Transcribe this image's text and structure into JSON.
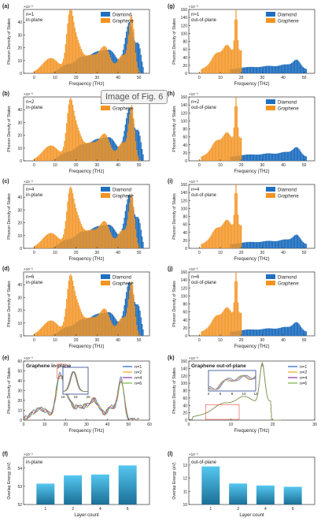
{
  "overlay_label": "Image of Fig. 6",
  "colors": {
    "diamond": "#1f6fbf",
    "graphene": "#f39422",
    "n1": "#1f5fd6",
    "n2": "#f5a623",
    "n4": "#8b2fb5",
    "n6": "#7cb342",
    "bar_top": "#55c7f0",
    "bar_bottom": "#1b6f96",
    "inset_box": "#2b3f8f",
    "red_box": "#e74c3c"
  },
  "chart_data": [
    {
      "id": "a",
      "type": "bar",
      "panel_label": "(a)",
      "n_label": "n=1",
      "plane_label": "in-plane",
      "scale_label": "×10⁻³",
      "ylabel": "Phonon Density of States",
      "xlabel": "Frequency (THz)",
      "xlim": [
        -5,
        55
      ],
      "xticks": [
        0,
        10,
        20,
        30,
        40,
        50
      ],
      "ylim": [
        0,
        50
      ],
      "yticks": [
        0,
        10,
        20,
        30,
        40
      ],
      "legend": [
        "Diamond",
        "Graphene"
      ],
      "diamond_peak": 40,
      "graphene_peak": 46
    },
    {
      "id": "b",
      "type": "bar",
      "panel_label": "(b)",
      "n_label": "n=2",
      "plane_label": "in-plane",
      "scale_label": "×10⁻³",
      "ylabel": "Phonon Density of States",
      "xlabel": "Frequency (THz)",
      "xlim": [
        -5,
        55
      ],
      "xticks": [
        0,
        10,
        20,
        30,
        40,
        50
      ],
      "ylim": [
        0,
        50
      ],
      "yticks": [
        0,
        10,
        20,
        30,
        40
      ],
      "legend": [
        "Diamond",
        "Graphene"
      ],
      "diamond_peak": 41,
      "graphene_peak": 44
    },
    {
      "id": "c",
      "type": "bar",
      "panel_label": "(c)",
      "n_label": "n=4",
      "plane_label": "in-plane",
      "scale_label": "×10⁻³",
      "ylabel": "Phonon Density of States",
      "xlabel": "Frequency (THz)",
      "xlim": [
        -5,
        55
      ],
      "xticks": [
        0,
        10,
        20,
        30,
        40,
        50
      ],
      "ylim": [
        0,
        50
      ],
      "yticks": [
        0,
        10,
        20,
        30,
        40
      ],
      "legend": [
        "Diamond",
        "Graphene"
      ],
      "diamond_peak": 42,
      "graphene_peak": 43
    },
    {
      "id": "d",
      "type": "bar",
      "panel_label": "(d)",
      "n_label": "n=6",
      "plane_label": "in-plane",
      "scale_label": "×10⁻³",
      "ylabel": "Phonon Density of States",
      "xlabel": "Frequency (THz)",
      "xlim": [
        -5,
        55
      ],
      "xticks": [
        0,
        10,
        20,
        30,
        40,
        50
      ],
      "ylim": [
        0,
        50
      ],
      "yticks": [
        0,
        10,
        20,
        30,
        40
      ],
      "legend": [
        "Diamond",
        "Graphene"
      ],
      "diamond_peak": 42,
      "graphene_peak": 43
    },
    {
      "id": "e",
      "type": "line",
      "panel_label": "(e)",
      "title": "Graphene in-plane",
      "scale_label": "×10⁻³",
      "ylabel": "Phonon Density of States",
      "xlabel": "Frequency (THz)",
      "xlim": [
        0,
        60
      ],
      "xticks": [
        0,
        10,
        20,
        30,
        40,
        50,
        60
      ],
      "ylim": [
        0,
        60
      ],
      "yticks": [
        0,
        10,
        20,
        30,
        40,
        50,
        60
      ],
      "legend": [
        "n=1",
        "n=2",
        "n=4",
        "n=6"
      ],
      "inset": {
        "xlim": [
          16,
          20
        ],
        "xticks": [
          16,
          18,
          20
        ]
      }
    },
    {
      "id": "f",
      "type": "bar",
      "panel_label": "(f)",
      "label": "in-plane",
      "scale_label": "×10⁻³",
      "ylabel": "Overlap Energy (eV)",
      "xlabel": "Layer count",
      "categories": [
        "1",
        "2",
        "4",
        "6"
      ],
      "values": [
        53.15,
        53.6,
        53.65,
        54.15
      ],
      "ylim": [
        52,
        54.6
      ],
      "yticks": [
        52,
        53,
        54
      ]
    },
    {
      "id": "g",
      "type": "bar",
      "panel_label": "(g)",
      "n_label": "n=1",
      "plane_label": "out-of-plane",
      "scale_label": "×10⁻³",
      "ylabel": "Phonon Density of States",
      "xlabel": "Frequency (THz)",
      "xlim": [
        -5,
        55
      ],
      "xticks": [
        0,
        10,
        20,
        30,
        40,
        50
      ],
      "ylim": [
        0,
        160
      ],
      "yticks": [
        0,
        20,
        40,
        60,
        80,
        100,
        120,
        140,
        160
      ],
      "legend": [
        "Diamond",
        "Graphene"
      ],
      "graphene_peak": 115
    },
    {
      "id": "h",
      "type": "bar",
      "panel_label": "(h)",
      "n_label": "n=2",
      "plane_label": "out-of-plane",
      "scale_label": "×10⁻³",
      "ylabel": "Phonon Density of States",
      "xlabel": "Frequency (THz)",
      "xlim": [
        -5,
        55
      ],
      "xticks": [
        0,
        10,
        20,
        30,
        40,
        50
      ],
      "ylim": [
        0,
        160
      ],
      "yticks": [
        0,
        20,
        40,
        60,
        80,
        100,
        120,
        140,
        160
      ],
      "legend": [
        "Diamond",
        "Graphene"
      ],
      "graphene_peak": 118
    },
    {
      "id": "i",
      "type": "bar",
      "panel_label": "(i)",
      "n_label": "n=4",
      "plane_label": "out-of-plane",
      "scale_label": "×10⁻³",
      "ylabel": "Phonon Density of States",
      "xlabel": "Frequency (THz)",
      "xlim": [
        -5,
        55
      ],
      "xticks": [
        0,
        10,
        20,
        30,
        40,
        50
      ],
      "ylim": [
        0,
        160
      ],
      "yticks": [
        0,
        20,
        40,
        60,
        80,
        100,
        120,
        140,
        160
      ],
      "legend": [
        "Diamond",
        "Graphene"
      ],
      "graphene_peak": 120
    },
    {
      "id": "j",
      "type": "bar",
      "panel_label": "(j)",
      "n_label": "n=6",
      "plane_label": "out-of-plane",
      "scale_label": "×10⁻³",
      "ylabel": "Phonon Density of States",
      "xlabel": "Frequency (THz)",
      "xlim": [
        -5,
        55
      ],
      "xticks": [
        0,
        10,
        20,
        30,
        40,
        50
      ],
      "ylim": [
        0,
        160
      ],
      "yticks": [
        0,
        20,
        40,
        60,
        80,
        100,
        120,
        140,
        160
      ],
      "legend": [
        "Diamond",
        "Graphene"
      ],
      "graphene_peak": 118
    },
    {
      "id": "k",
      "type": "line",
      "panel_label": "(k)",
      "title": "Graphene out-of-plane",
      "scale_label": "×10⁻³",
      "ylabel": "Phonon Density of States",
      "xlabel": "Frequency (THz)",
      "xlim": [
        0,
        30
      ],
      "xticks": [
        0,
        10,
        20,
        30
      ],
      "ylim": [
        0,
        160
      ],
      "yticks": [
        0,
        20,
        40,
        60,
        80,
        100,
        120,
        140,
        160
      ],
      "legend": [
        "n=1",
        "n=2",
        "n=4",
        "n=6"
      ],
      "inset": {
        "xlim": [
          4,
          12
        ],
        "xticks": [
          4,
          6,
          8,
          10,
          12
        ]
      }
    },
    {
      "id": "l",
      "type": "bar",
      "panel_label": "(l)",
      "label": "out-of-plane",
      "scale_label": "×10⁻³",
      "ylabel": "Overlap Energy (eV)",
      "xlabel": "Layer count",
      "categories": [
        "1",
        "2",
        "4",
        "6"
      ],
      "values": [
        12.9,
        11.6,
        11.45,
        11.35
      ],
      "ylim": [
        10,
        13.6
      ],
      "yticks": [
        10,
        11,
        12,
        13
      ]
    }
  ]
}
